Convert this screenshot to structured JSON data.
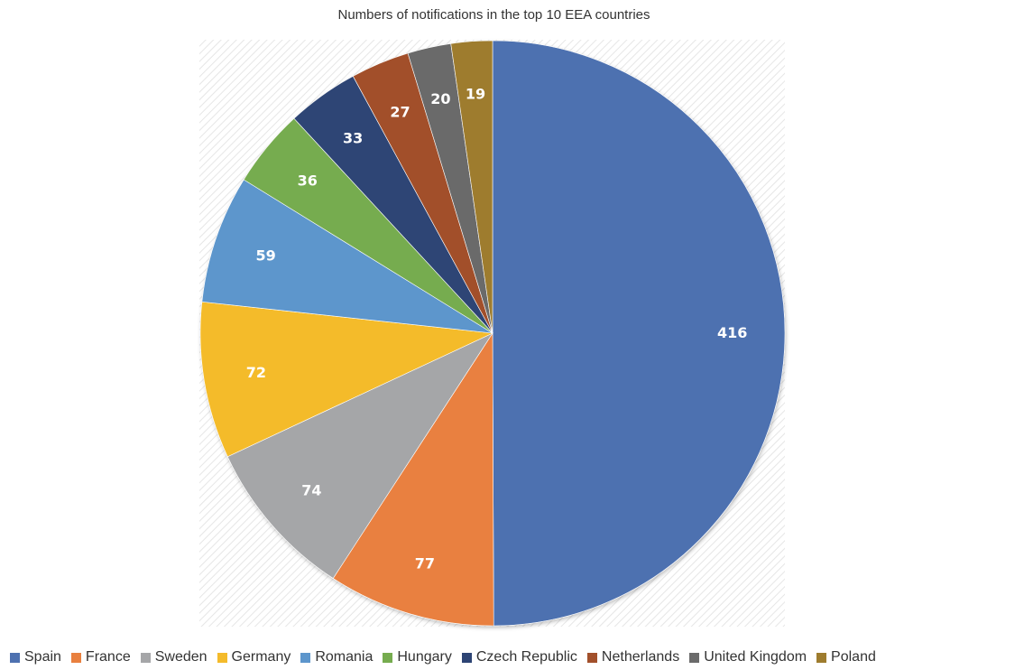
{
  "chart_data": {
    "type": "pie",
    "title": "Numbers of notifications in the top 10 EEA countries",
    "categories": [
      "Spain",
      "France",
      "Sweden",
      "Germany",
      "Romania",
      "Hungary",
      "Czech Republic",
      "Netherlands",
      "United Kingdom",
      "Poland"
    ],
    "values": [
      416,
      77,
      74,
      72,
      59,
      36,
      33,
      27,
      20,
      19
    ],
    "colors": [
      "#4e71b0",
      "#e9803f",
      "#a5a6a8",
      "#f4bb2b",
      "#5d96cc",
      "#76ac4f",
      "#2d4474",
      "#a2502b",
      "#6b6b6b",
      "#9e7c2e"
    ],
    "data_labels": true,
    "legend_position": "bottom",
    "start_angle": "12 o'clock",
    "direction": "clockwise"
  }
}
